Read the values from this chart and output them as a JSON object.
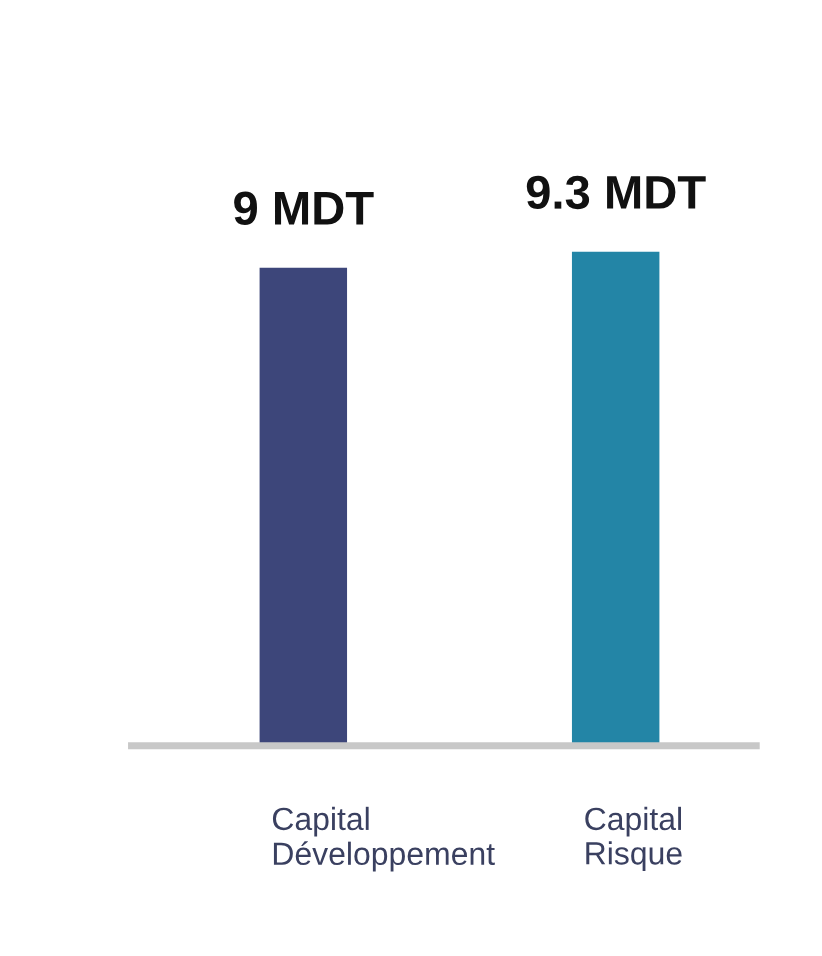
{
  "chart_data": {
    "type": "bar",
    "categories": [
      "Capital Développement",
      "Capital Risque"
    ],
    "values": [
      9,
      9.3
    ],
    "colors": [
      "#3d467a",
      "#2385a6"
    ],
    "value_labels": [
      "9 MDT",
      "9.3 MDT"
    ],
    "grid": false,
    "legend": false
  }
}
